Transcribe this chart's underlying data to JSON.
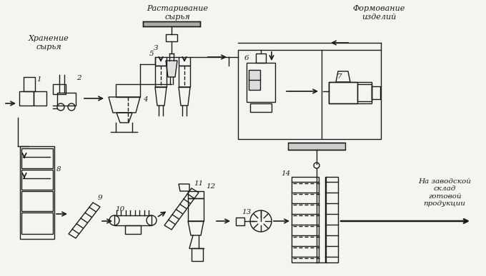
{
  "bg_color": "#f5f5f0",
  "line_color": "#1a1a1a",
  "text_color": "#1a1a1a",
  "lbl_storage": "Хранение\nсырья",
  "lbl_unpack": "Растаривание\nсырья",
  "lbl_forming": "Формование\nизделий",
  "lbl_warehouse": "На заводской\nсклад\nготовой\nпродукции"
}
